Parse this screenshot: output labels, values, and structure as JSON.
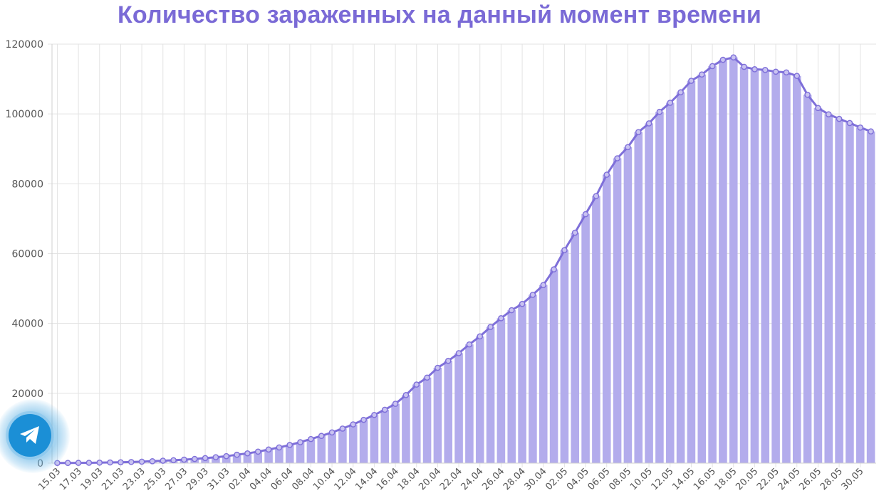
{
  "chart_data": {
    "type": "bar",
    "title": "Количество зараженных на данный момент времени",
    "xlabel": "",
    "ylabel": "",
    "ylim": [
      0,
      120000
    ],
    "yticks": [
      "0",
      "20000",
      "40000",
      "60000",
      "80000",
      "100000",
      "120000"
    ],
    "grid": true,
    "overlay_line": true,
    "categories": [
      "15.03",
      "16.03",
      "17.03",
      "18.03",
      "19.03",
      "20.03",
      "21.03",
      "22.03",
      "23.03",
      "24.03",
      "25.03",
      "26.03",
      "27.03",
      "28.03",
      "29.03",
      "30.03",
      "31.03",
      "01.04",
      "02.04",
      "03.04",
      "04.04",
      "05.04",
      "06.04",
      "07.04",
      "08.04",
      "09.04",
      "10.04",
      "11.04",
      "12.04",
      "13.04",
      "14.04",
      "15.04",
      "16.04",
      "17.04",
      "18.04",
      "19.04",
      "20.04",
      "21.04",
      "22.04",
      "23.04",
      "24.04",
      "25.04",
      "26.04",
      "27.04",
      "28.04",
      "29.04",
      "30.04",
      "01.05",
      "02.05",
      "03.05",
      "04.05",
      "05.05",
      "06.05",
      "07.05",
      "08.05",
      "09.05",
      "10.05",
      "11.05",
      "12.05",
      "13.05",
      "14.05",
      "15.05",
      "16.05",
      "17.05",
      "18.05",
      "19.05",
      "20.05",
      "21.05",
      "22.05",
      "23.05",
      "24.05",
      "25.05",
      "26.05",
      "27.05",
      "28.05",
      "29.05",
      "30.05",
      "31.05"
    ],
    "xtick_labels": [
      "15.03",
      "17.03",
      "19.03",
      "21.03",
      "23.03",
      "25.03",
      "27.03",
      "29.03",
      "31.03",
      "02.04",
      "04.04",
      "06.04",
      "08.04",
      "10.04",
      "12.04",
      "14.04",
      "16.04",
      "18.04",
      "20.04",
      "22.04",
      "24.04",
      "26.04",
      "28.04",
      "30.04",
      "02.05",
      "04.05",
      "06.05",
      "08.05",
      "10.05",
      "12.05",
      "14.05",
      "16.05",
      "18.05",
      "20.05",
      "22.05",
      "24.05",
      "26.05",
      "28.05",
      "30.05"
    ],
    "values": [
      50,
      60,
      80,
      100,
      150,
      200,
      250,
      330,
      420,
      540,
      700,
      840,
      1000,
      1200,
      1450,
      1700,
      2000,
      2400,
      2800,
      3300,
      3900,
      4500,
      5200,
      6000,
      6900,
      7800,
      8800,
      9900,
      11100,
      12400,
      13800,
      15300,
      17000,
      19500,
      22500,
      24500,
      27300,
      29300,
      31500,
      34000,
      36300,
      39000,
      41500,
      43800,
      45600,
      48200,
      51000,
      55500,
      61000,
      66000,
      71300,
      76500,
      82600,
      87300,
      90500,
      94800,
      97300,
      100600,
      103200,
      106200,
      109500,
      111300,
      113700,
      115500,
      116200,
      113500,
      112800,
      112600,
      112100,
      111900,
      110900,
      105500,
      101700,
      99900,
      98600,
      97400,
      96100,
      95000
    ]
  },
  "widget": {
    "icon": "telegram-paper-plane-icon"
  },
  "colors": {
    "bar": "#b3acec",
    "line": "#7e6fd9",
    "title": "#7a6ad6",
    "grid": "#e3e3e3"
  }
}
